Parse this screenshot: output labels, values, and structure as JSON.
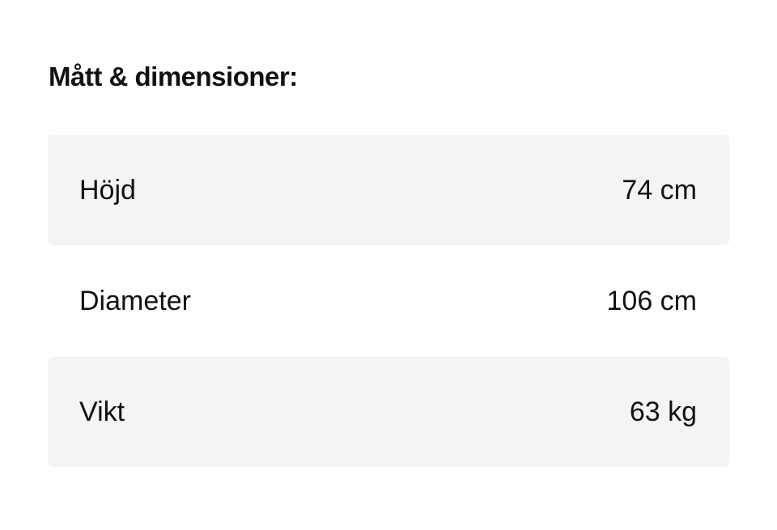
{
  "title": "Mått & dimensioner:",
  "rows": [
    {
      "label": "Höjd",
      "value": "74 cm"
    },
    {
      "label": "Diameter",
      "value": "106 cm"
    },
    {
      "label": "Vikt",
      "value": "63 kg"
    }
  ]
}
